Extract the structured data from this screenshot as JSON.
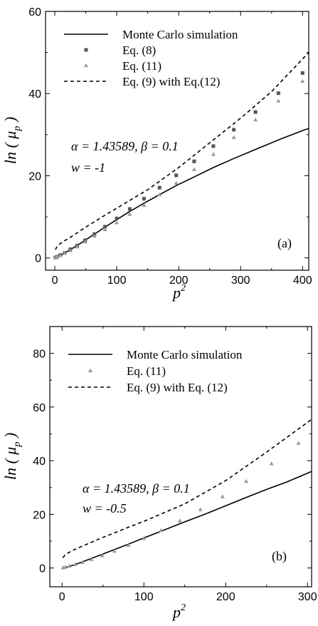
{
  "chart_data": [
    {
      "type": "line",
      "panel_label": "(a)",
      "xlabel": "p",
      "xlabel_sup": "2",
      "ylabel": "ln ( μ",
      "ylabel_sub": "p",
      "ylabel_close": ")",
      "xlim": [
        -15,
        410
      ],
      "ylim": [
        -3,
        60
      ],
      "xticks": [
        0,
        100,
        200,
        300,
        400
      ],
      "yticks": [
        0,
        20,
        40,
        60
      ],
      "annotation_line1": "α = 1.43589, β = 0.1",
      "annotation_line2": "w = -1",
      "legend": [
        {
          "label": "Monte Carlo simulation",
          "style": "solid"
        },
        {
          "label": "Eq. (8)",
          "style": "square"
        },
        {
          "label": "Eq. (11)",
          "style": "triangle"
        },
        {
          "label": "Eq. (9) with Eq.(12)",
          "style": "dashed"
        }
      ],
      "series": [
        {
          "name": "Monte Carlo simulation",
          "style": "solid",
          "color": "#000000",
          "x": [
            1,
            4,
            9,
            16,
            25,
            36,
            49,
            64,
            81,
            100,
            121,
            144,
            169,
            196,
            225,
            256,
            289,
            324,
            361,
            400,
            410
          ],
          "y": [
            0.05,
            0.2,
            0.6,
            1.2,
            2.0,
            3.0,
            4.3,
            5.8,
            7.5,
            9.3,
            11.3,
            13.3,
            15.4,
            17.6,
            19.7,
            22.0,
            24.2,
            26.4,
            28.7,
            31.0,
            31.5
          ]
        },
        {
          "name": "Eq. (8)",
          "style": "square",
          "color": "#555555",
          "x": [
            1,
            4,
            9,
            16,
            25,
            36,
            49,
            64,
            81,
            100,
            121,
            144,
            169,
            196,
            225,
            256,
            289,
            324,
            361,
            400
          ],
          "y": [
            0.1,
            0.3,
            0.7,
            1.2,
            2.1,
            3.0,
            4.3,
            5.8,
            7.6,
            9.6,
            11.9,
            14.4,
            17.1,
            20.1,
            23.5,
            27.2,
            31.2,
            35.5,
            40.1,
            45.0
          ]
        },
        {
          "name": "Eq. (11)",
          "style": "triangle",
          "color": "#999999",
          "x": [
            1,
            4,
            9,
            16,
            25,
            36,
            49,
            64,
            81,
            100,
            121,
            144,
            169,
            196,
            225,
            256,
            289,
            324,
            361,
            400
          ],
          "y": [
            0.1,
            0.3,
            0.6,
            1.1,
            1.8,
            2.7,
            3.9,
            5.3,
            6.9,
            8.6,
            10.6,
            12.8,
            15.4,
            18.2,
            21.5,
            25.2,
            29.3,
            33.6,
            38.2,
            43.0
          ]
        },
        {
          "name": "Eq. (9) with Eq.(12)",
          "style": "dashed",
          "color": "#000000",
          "x": [
            1,
            4,
            9,
            16,
            25,
            36,
            49,
            64,
            81,
            100,
            150,
            200,
            250,
            300,
            350,
            410
          ],
          "y": [
            2.0,
            2.9,
            3.5,
            4.2,
            5.0,
            6.1,
            7.4,
            8.8,
            10.4,
            12.1,
            16.6,
            22.0,
            28.0,
            34.0,
            40.5,
            50.0
          ]
        }
      ]
    },
    {
      "type": "line",
      "panel_label": "(b)",
      "xlabel": "p",
      "xlabel_sup": "2",
      "ylabel": "ln ( μ",
      "ylabel_sub": "p",
      "ylabel_close": ")",
      "xlim": [
        -15,
        305
      ],
      "ylim": [
        -7,
        90
      ],
      "xticks": [
        0,
        100,
        200,
        300
      ],
      "yticks": [
        0,
        20,
        40,
        60,
        80
      ],
      "annotation_line1": "α = 1.43589, β = 0.1",
      "annotation_line2": "w = -0.5",
      "legend": [
        {
          "label": "Monte Carlo simulation",
          "style": "solid"
        },
        {
          "label": "Eq. (11)",
          "style": "triangle"
        },
        {
          "label": "Eq. (9) with Eq. (12)",
          "style": "dashed"
        }
      ],
      "series": [
        {
          "name": "Monte Carlo simulation",
          "style": "solid",
          "color": "#000000",
          "x": [
            1,
            4,
            9,
            16,
            25,
            36,
            49,
            64,
            81,
            100,
            125,
            150,
            175,
            200,
            225,
            250,
            275,
            305
          ],
          "y": [
            0.05,
            0.2,
            0.6,
            1.3,
            2.3,
            3.6,
            5.1,
            6.9,
            8.9,
            11.2,
            14.2,
            17.2,
            20.1,
            23.2,
            26.3,
            29.3,
            32.1,
            36.0
          ]
        },
        {
          "name": "Eq. (11)",
          "style": "triangle",
          "color": "#999999",
          "x": [
            1,
            4,
            9,
            16,
            25,
            36,
            49,
            64,
            81,
            100,
            121,
            144,
            169,
            196,
            225,
            256,
            289
          ],
          "y": [
            0.1,
            0.3,
            0.7,
            1.3,
            2.1,
            3.2,
            4.6,
            6.3,
            8.5,
            11.0,
            14.0,
            17.6,
            21.8,
            26.6,
            32.3,
            38.9,
            46.5
          ]
        },
        {
          "name": "Eq. (9) with Eq. (12)",
          "style": "dashed",
          "color": "#000000",
          "x": [
            1,
            4,
            9,
            16,
            25,
            36,
            49,
            64,
            81,
            100,
            150,
            200,
            250,
            305
          ],
          "y": [
            3.8,
            5.0,
            5.9,
            7.0,
            8.2,
            9.6,
            11.3,
            13.1,
            15.2,
            17.4,
            23.9,
            32.6,
            43.2,
            55.4
          ]
        }
      ]
    }
  ]
}
